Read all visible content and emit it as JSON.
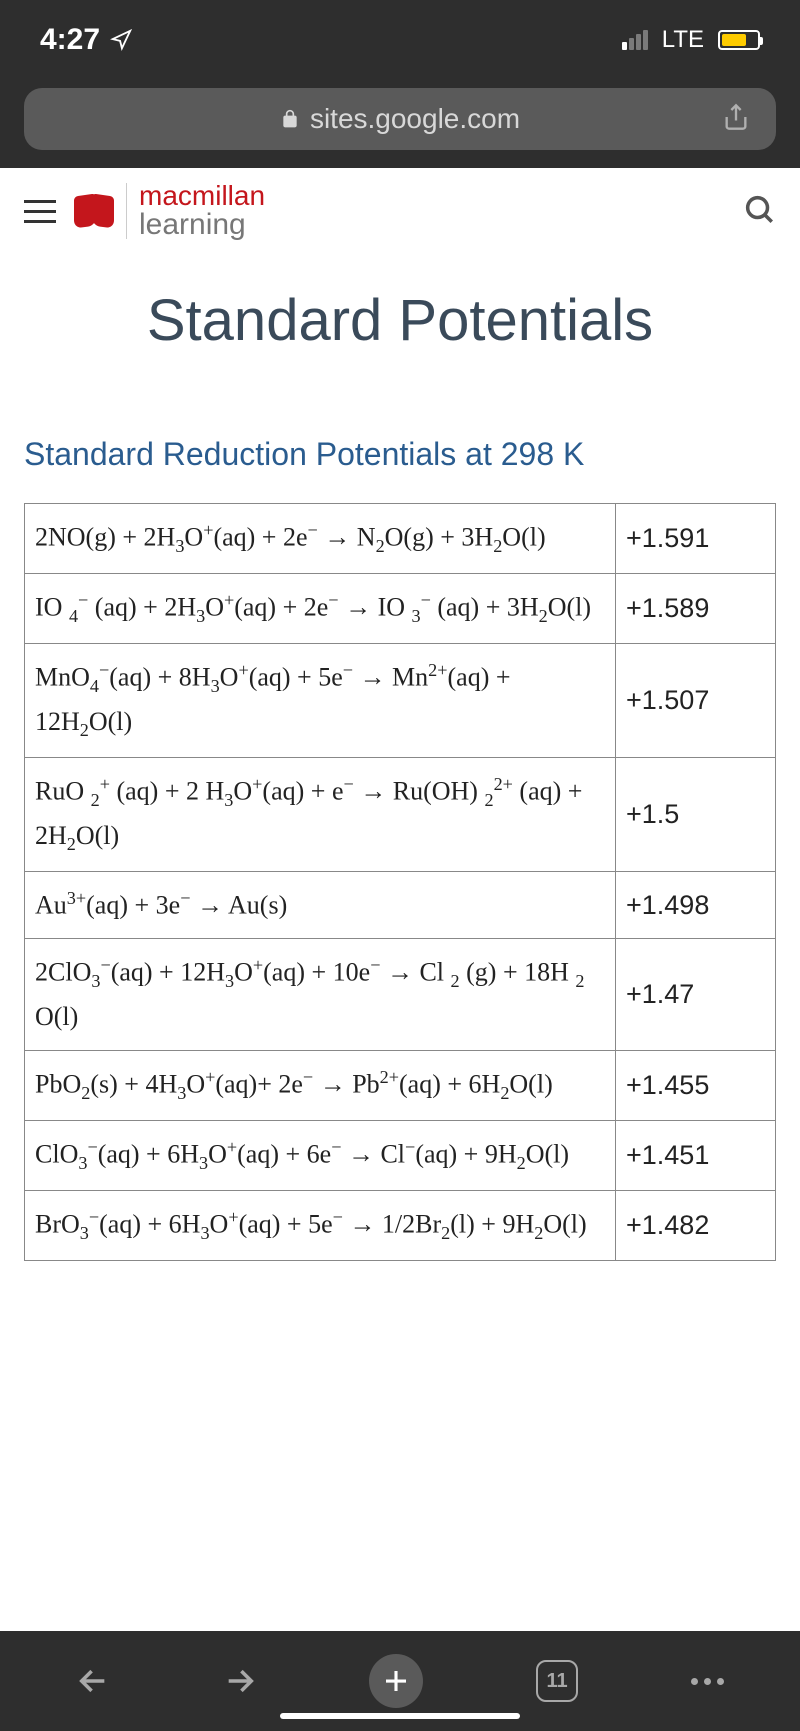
{
  "status": {
    "time": "4:27",
    "network": "LTE"
  },
  "browser": {
    "url": "sites.google.com",
    "tab_count": "11"
  },
  "brand": {
    "top": "macmillan",
    "bottom": "learning"
  },
  "page": {
    "title": "Standard Potentials",
    "section_title": "Standard Reduction Potentials at 298 K"
  },
  "table": {
    "rows": [
      {
        "reaction": "2NO(g) + 2H₃O⁺(aq) + 2e⁻ → N₂O(g) + 3H₂O(l)",
        "potential": "+1.591"
      },
      {
        "reaction": "IO ₄⁻ (aq) + 2H₃O⁺(aq) + 2e⁻ → IO ₃⁻ (aq) + 3H₂O(l)",
        "potential": "+1.589"
      },
      {
        "reaction": "MnO₄⁻(aq) + 8H₃O⁺(aq) + 5e⁻ → Mn²⁺(aq) + 12H₂O(l)",
        "potential": "+1.507"
      },
      {
        "reaction": "RuO ₂⁺ (aq) + 2 H₃O⁺(aq) + e⁻ → Ru(OH) ₂²⁺ (aq) + 2H₂O(l)",
        "potential": "+1.5"
      },
      {
        "reaction": "Au³⁺(aq) + 3e⁻ → Au(s)",
        "potential": "+1.498"
      },
      {
        "reaction": "2ClO₃⁻(aq) + 12H₃O⁺(aq) + 10e⁻ → Cl ₂ (g) + 18H ₂ O(l)",
        "potential": "+1.47"
      },
      {
        "reaction": "PbO₂(s) + 4H₃O⁺(aq)+ 2e⁻ → Pb²⁺(aq) + 6H₂O(l)",
        "potential": "+1.455"
      },
      {
        "reaction": "ClO₃⁻(aq) + 6H₃O⁺(aq) + 6e⁻ → Cl⁻(aq) + 9H₂O(l)",
        "potential": "+1.451"
      },
      {
        "reaction": "BrO₃⁻(aq) + 6H₃O⁺(aq) + 5e⁻ → 1/2Br₂(l) + 9H₂O(l)",
        "potential": "+1.482"
      }
    ]
  }
}
